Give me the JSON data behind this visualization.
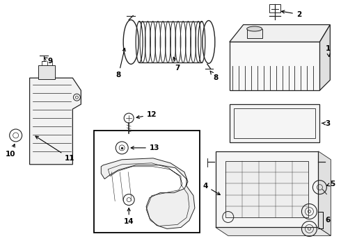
{
  "background_color": "#ffffff",
  "line_color": "#222222",
  "fig_width": 4.9,
  "fig_height": 3.6,
  "dpi": 100
}
